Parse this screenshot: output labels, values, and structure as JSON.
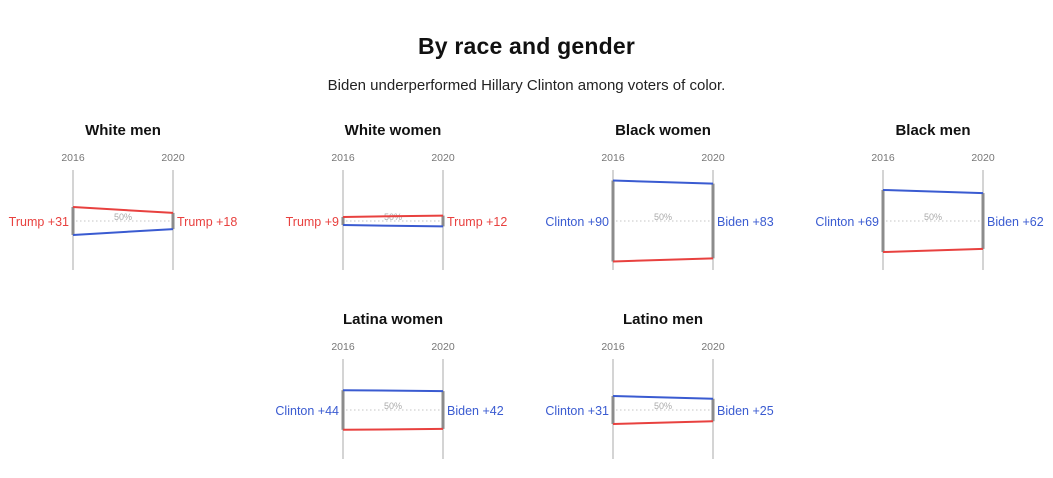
{
  "header": {
    "title": "By race and gender",
    "subtitle": "Biden underperformed Hillary Clinton among voters of color."
  },
  "colors": {
    "dem": "#3a5bd1",
    "rep": "#e8413f",
    "bar": "#8c8c8c",
    "axis": "#bdbdbd"
  },
  "chart_data": {
    "type": "line",
    "midline_label": "50%",
    "x": [
      "2016",
      "2020"
    ],
    "panels": [
      {
        "title": "White men",
        "margin_labels": [
          "Trump +31",
          "Trump +18"
        ],
        "winner": [
          "rep",
          "rep"
        ],
        "margins": [
          -31,
          -18
        ]
      },
      {
        "title": "White women",
        "margin_labels": [
          "Trump +9",
          "Trump +12"
        ],
        "winner": [
          "rep",
          "rep"
        ],
        "margins": [
          -9,
          -12
        ]
      },
      {
        "title": "Black women",
        "margin_labels": [
          "Clinton +90",
          "Biden +83"
        ],
        "winner": [
          "dem",
          "dem"
        ],
        "margins": [
          90,
          83
        ]
      },
      {
        "title": "Black men",
        "margin_labels": [
          "Clinton +69",
          "Biden +62"
        ],
        "winner": [
          "dem",
          "dem"
        ],
        "margins": [
          69,
          62
        ]
      },
      {
        "title": "Latina women",
        "margin_labels": [
          "Clinton +44",
          "Biden +42"
        ],
        "winner": [
          "dem",
          "dem"
        ],
        "margins": [
          44,
          42
        ]
      },
      {
        "title": "Latino men",
        "margin_labels": [
          "Clinton +31",
          "Biden +25"
        ],
        "winner": [
          "dem",
          "dem"
        ],
        "margins": [
          31,
          25
        ]
      }
    ]
  }
}
